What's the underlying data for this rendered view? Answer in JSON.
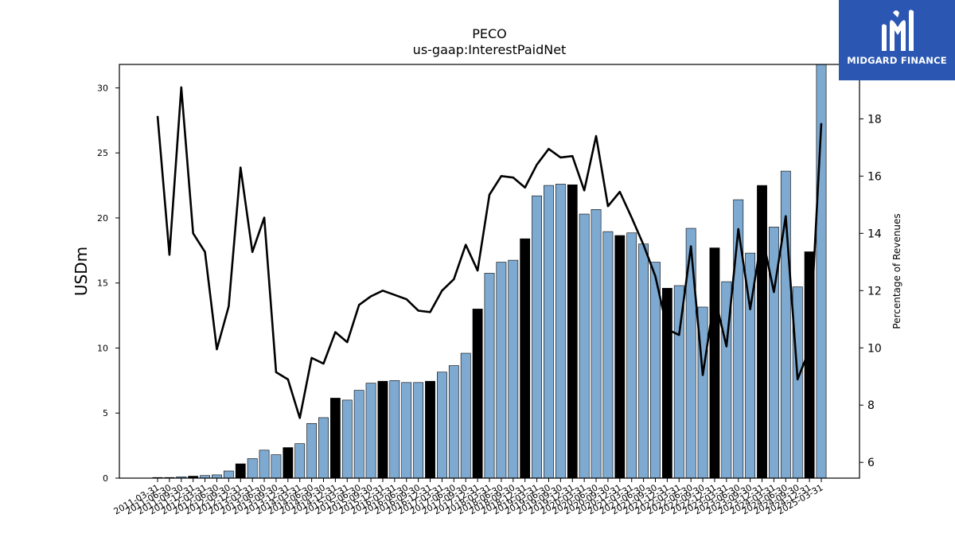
{
  "brand": {
    "name": "MIDGARD FINANCE",
    "bg_color": "#2b57b2",
    "icon": "midgard-logo-icon"
  },
  "chart_data": {
    "type": "bar",
    "title": "PECO",
    "subtitle": "us-gaap:InterestPaidNet",
    "ylabel": "USDm",
    "y2label": "Percentage of Revenues",
    "ylim": [
      0,
      31.8
    ],
    "y2lim": [
      5.45,
      19.9
    ],
    "yticks": [
      0,
      5,
      10,
      15,
      20,
      25,
      30
    ],
    "y2ticks": [
      6,
      8,
      10,
      12,
      14,
      16,
      18
    ],
    "colors": {
      "quarter": "#7eaad1",
      "year_end": "#000000",
      "line": "#000000"
    },
    "categories": [
      "2011-03-31",
      "2011-06-30",
      "2011-09-30",
      "2011-12-31",
      "2012-03-31",
      "2012-06-30",
      "2012-09-30",
      "2012-12-31",
      "2013-03-31",
      "2013-06-30",
      "2013-09-30",
      "2013-12-31",
      "2014-03-31",
      "2014-06-30",
      "2014-09-30",
      "2014-12-31",
      "2015-03-31",
      "2015-06-30",
      "2015-09-30",
      "2015-12-31",
      "2016-03-31",
      "2016-06-30",
      "2016-09-30",
      "2016-12-31",
      "2017-03-31",
      "2017-06-30",
      "2017-09-30",
      "2017-12-31",
      "2018-03-31",
      "2018-06-30",
      "2018-09-30",
      "2018-12-31",
      "2019-03-31",
      "2019-06-30",
      "2019-09-30",
      "2019-12-31",
      "2020-03-31",
      "2020-06-30",
      "2020-09-30",
      "2020-12-31",
      "2021-03-31",
      "2021-06-30",
      "2021-09-30",
      "2021-12-31",
      "2022-03-31",
      "2022-06-30",
      "2022-09-30",
      "2022-12-31",
      "2023-03-31",
      "2023-06-30",
      "2023-09-30",
      "2023-12-31",
      "2024-03-31",
      "2024-06-30",
      "2024-09-30",
      "2024-12-31",
      "2025-03-31"
    ],
    "xtick_labels": [
      "2011-03-31",
      "2011-06-30",
      "2011-09-30",
      "2011-12-31",
      "2012-03-31",
      "2012-06-30",
      "2012-09-30",
      "2012-12-31",
      "2013-03-31",
      "2013-06-30",
      "2013-09-30",
      "2013-12-31",
      "2014-03-31",
      "2014-06-30",
      "2014-09-30",
      "2014-12-31",
      "2015-03-31",
      "2015-06-30",
      "2015-09-30",
      "2015-12-31",
      "2016-03-31",
      "2016-06-30",
      "2016-09-30",
      "2016-12-31",
      "2017-03-31",
      "2017-06-30",
      "2017-09-30",
      "2017-12-31",
      "2018-03-31",
      "2018-06-30",
      "2018-09-30",
      "2018-12-31",
      "2019-03-31",
      "2019-06-30",
      "2019-09-30",
      "2019-12-31",
      "2020-03-31",
      "2020-06-30",
      "2020-09-30",
      "2020-12-31",
      "2021-03-31",
      "2021-06-30",
      "2021-09-30",
      "2021-12-31",
      "2022-03-31",
      "2022-06-30",
      "2022-09-30",
      "2022-12-31",
      "2023-03-31",
      "2023-06-30",
      "2023-09-30",
      "2023-12-31",
      "2024-03-31",
      "2024-06-30",
      "2024-09-30",
      "2024-12-31",
      "2025-03-31"
    ],
    "values": [
      0.05,
      0.05,
      0.1,
      0.15,
      0.2,
      0.25,
      0.55,
      1.1,
      1.5,
      2.15,
      1.8,
      2.35,
      2.65,
      4.2,
      4.65,
      6.15,
      6.0,
      6.75,
      7.3,
      7.45,
      7.5,
      7.35,
      7.35,
      7.45,
      8.15,
      8.65,
      9.6,
      13.0,
      15.75,
      16.6,
      16.75,
      18.4,
      21.7,
      22.5,
      22.6,
      22.55,
      20.3,
      20.65,
      18.95,
      18.65,
      18.85,
      18.0,
      16.6,
      14.6,
      14.8,
      19.2,
      13.15,
      17.7,
      15.1,
      21.4,
      17.3,
      22.5,
      19.3,
      23.6,
      14.7,
      17.4,
      31.8
    ],
    "year_end": [
      false,
      false,
      false,
      true,
      false,
      false,
      false,
      true,
      false,
      false,
      false,
      true,
      false,
      false,
      false,
      true,
      false,
      false,
      false,
      true,
      false,
      false,
      false,
      true,
      false,
      false,
      false,
      true,
      false,
      false,
      false,
      true,
      false,
      false,
      false,
      true,
      false,
      false,
      false,
      true,
      false,
      false,
      false,
      true,
      false,
      false,
      false,
      true,
      false,
      false,
      false,
      true,
      false,
      false,
      false,
      true,
      false
    ],
    "pct_of_revenues": [
      18.1,
      13.25,
      19.1,
      14.0,
      13.35,
      9.95,
      11.45,
      16.3,
      13.35,
      14.55,
      9.15,
      8.9,
      7.55,
      9.65,
      9.45,
      10.55,
      10.2,
      11.5,
      11.8,
      12.0,
      11.85,
      11.7,
      11.3,
      11.25,
      12.0,
      12.4,
      13.6,
      12.7,
      15.35,
      16.0,
      15.95,
      15.6,
      16.4,
      16.95,
      16.65,
      16.7,
      15.5,
      17.4,
      14.95,
      15.45,
      14.55,
      13.6,
      12.5,
      10.65,
      10.45,
      13.55,
      9.05,
      11.8,
      10.05,
      14.15,
      11.35,
      13.95,
      11.95,
      14.6,
      8.9,
      9.95,
      17.85
    ]
  }
}
